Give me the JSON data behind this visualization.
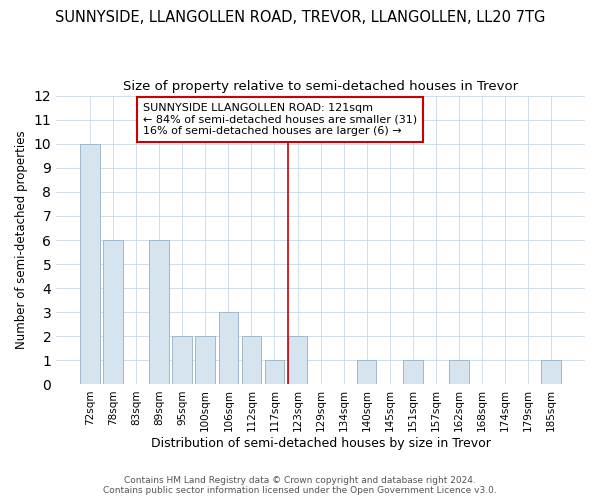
{
  "title1": "SUNNYSIDE, LLANGOLLEN ROAD, TREVOR, LLANGOLLEN, LL20 7TG",
  "title2": "Size of property relative to semi-detached houses in Trevor",
  "xlabel": "Distribution of semi-detached houses by size in Trevor",
  "ylabel": "Number of semi-detached properties",
  "categories": [
    "72sqm",
    "78sqm",
    "83sqm",
    "89sqm",
    "95sqm",
    "100sqm",
    "106sqm",
    "112sqm",
    "117sqm",
    "123sqm",
    "129sqm",
    "134sqm",
    "140sqm",
    "145sqm",
    "151sqm",
    "157sqm",
    "162sqm",
    "168sqm",
    "174sqm",
    "179sqm",
    "185sqm"
  ],
  "values": [
    10,
    6,
    0,
    6,
    2,
    2,
    3,
    2,
    1,
    2,
    0,
    0,
    1,
    0,
    1,
    0,
    1,
    0,
    0,
    0,
    1
  ],
  "bar_color": "#d6e4f0",
  "bar_edge_color": "#a0b8cc",
  "property_label": "SUNNYSIDE LLANGOLLEN ROAD: 121sqm",
  "annotation_line1": "← 84% of semi-detached houses are smaller (31)",
  "annotation_line2": "16% of semi-detached houses are larger (6) →",
  "vline_color": "#cc0000",
  "vline_x": 9.0,
  "ylim": [
    0,
    12
  ],
  "yticks": [
    0,
    1,
    2,
    3,
    4,
    5,
    6,
    7,
    8,
    9,
    10,
    11,
    12
  ],
  "footnote1": "Contains HM Land Registry data © Crown copyright and database right 2024.",
  "footnote2": "Contains public sector information licensed under the Open Government Licence v3.0.",
  "background_color": "#ffffff",
  "title1_fontsize": 10.5,
  "title2_fontsize": 9.5,
  "annotation_fontsize": 8,
  "annotation_box_color": "#ffffff",
  "annotation_box_edge": "#cc0000",
  "grid_color": "#c8d8e8"
}
